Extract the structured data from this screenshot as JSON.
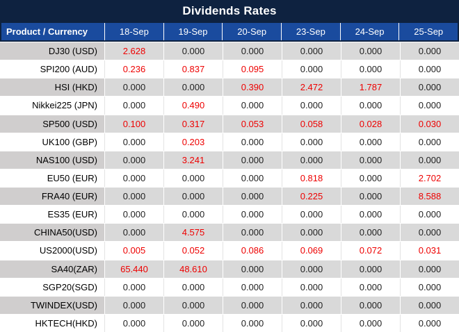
{
  "title": "Dividends Rates",
  "columns": {
    "product": "Product / Currency",
    "dates": [
      "18-Sep",
      "19-Sep",
      "20-Sep",
      "23-Sep",
      "24-Sep",
      "25-Sep"
    ]
  },
  "rows": [
    {
      "product": "DJ30 (USD)",
      "values": [
        "2.628",
        "0.000",
        "0.000",
        "0.000",
        "0.000",
        "0.000"
      ]
    },
    {
      "product": "SPI200 (AUD)",
      "values": [
        "0.236",
        "0.837",
        "0.095",
        "0.000",
        "0.000",
        "0.000"
      ]
    },
    {
      "product": "HSI (HKD)",
      "values": [
        "0.000",
        "0.000",
        "0.390",
        "2.472",
        "1.787",
        "0.000"
      ]
    },
    {
      "product": "Nikkei225 (JPN)",
      "values": [
        "0.000",
        "0.490",
        "0.000",
        "0.000",
        "0.000",
        "0.000"
      ]
    },
    {
      "product": "SP500 (USD)",
      "values": [
        "0.100",
        "0.317",
        "0.053",
        "0.058",
        "0.028",
        "0.030"
      ]
    },
    {
      "product": "UK100 (GBP)",
      "values": [
        "0.000",
        "0.203",
        "0.000",
        "0.000",
        "0.000",
        "0.000"
      ]
    },
    {
      "product": "NAS100 (USD)",
      "values": [
        "0.000",
        "3.241",
        "0.000",
        "0.000",
        "0.000",
        "0.000"
      ]
    },
    {
      "product": "EU50 (EUR)",
      "values": [
        "0.000",
        "0.000",
        "0.000",
        "0.818",
        "0.000",
        "2.702"
      ]
    },
    {
      "product": "FRA40 (EUR)",
      "values": [
        "0.000",
        "0.000",
        "0.000",
        "0.225",
        "0.000",
        "8.588"
      ]
    },
    {
      "product": "ES35 (EUR)",
      "values": [
        "0.000",
        "0.000",
        "0.000",
        "0.000",
        "0.000",
        "0.000"
      ]
    },
    {
      "product": "CHINA50(USD)",
      "values": [
        "0.000",
        "4.575",
        "0.000",
        "0.000",
        "0.000",
        "0.000"
      ]
    },
    {
      "product": "US2000(USD)",
      "values": [
        "0.005",
        "0.052",
        "0.086",
        "0.069",
        "0.072",
        "0.031"
      ]
    },
    {
      "product": "SA40(ZAR)",
      "values": [
        "65.440",
        "48.610",
        "0.000",
        "0.000",
        "0.000",
        "0.000"
      ]
    },
    {
      "product": "SGP20(SGD)",
      "values": [
        "0.000",
        "0.000",
        "0.000",
        "0.000",
        "0.000",
        "0.000"
      ]
    },
    {
      "product": "TWINDEX(USD)",
      "values": [
        "0.000",
        "0.000",
        "0.000",
        "0.000",
        "0.000",
        "0.000"
      ]
    },
    {
      "product": "HKTECH(HKD)",
      "values": [
        "0.000",
        "0.000",
        "0.000",
        "0.000",
        "0.000",
        "0.000"
      ]
    }
  ],
  "colors": {
    "title_bg": "#0E2240",
    "header_bg": "#1A4B9E",
    "stripe_row_bg": "#D9D9D9",
    "stripe_product_bg": "#D0CECE",
    "nonzero_value_color": "#EE0000",
    "zero_value_color": "#1F1F1F"
  }
}
